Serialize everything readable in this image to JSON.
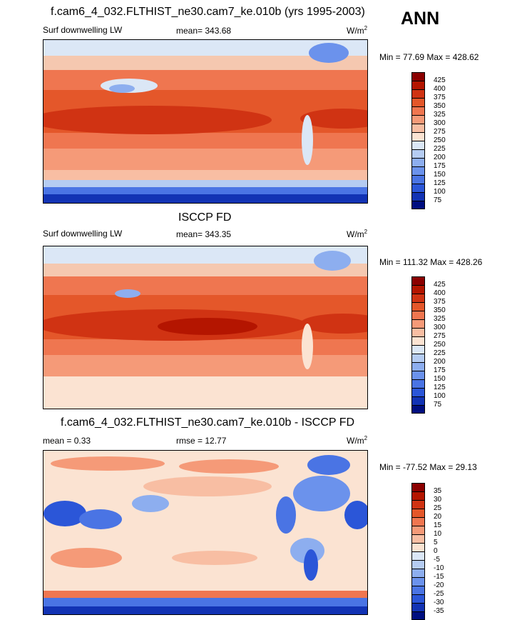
{
  "season": "ANN",
  "panels": [
    {
      "title": "f.cam6_4_032.FLTHIST_ne30.cam7_ke.010b (yrs 1995-2003)",
      "left_label": "Surf downwelling LW",
      "center_label": "mean= 343.68",
      "units": "W/m",
      "units_exp": "2",
      "minmax": "Min =  77.69 Max = 428.62"
    },
    {
      "title": "ISCCP FD",
      "left_label": "Surf downwelling LW",
      "center_label": "mean= 343.35",
      "units": "W/m",
      "units_exp": "2",
      "minmax": "Min = 111.32 Max = 428.26"
    },
    {
      "title": "f.cam6_4_032.FLTHIST_ne30.cam7_ke.010b - ISCCP FD",
      "left_label": "mean =   0.33",
      "center_label": "rmse =  12.77",
      "units": "W/m",
      "units_exp": "2",
      "minmax": "Min = -77.52 Max =  29.13"
    }
  ],
  "colorbar_abs": {
    "labels": [
      "425",
      "400",
      "375",
      "350",
      "325",
      "300",
      "275",
      "250",
      "225",
      "200",
      "175",
      "150",
      "125",
      "100",
      "75"
    ],
    "colors": [
      "#8b0000",
      "#b41500",
      "#d03313",
      "#e4572a",
      "#ef7650",
      "#f59a78",
      "#f8bea3",
      "#fbe3d2",
      "#dbe7f6",
      "#b5ccf2",
      "#8daeef",
      "#6b92ec",
      "#4a74e4",
      "#2b56d8",
      "#1233b4",
      "#000e80"
    ]
  },
  "colorbar_diff": {
    "labels": [
      "35",
      "30",
      "25",
      "20",
      "15",
      "10",
      "5",
      "0",
      "-5",
      "-10",
      "-15",
      "-20",
      "-25",
      "-30",
      "-35"
    ],
    "colors": [
      "#8b0000",
      "#b41500",
      "#d03313",
      "#e4572a",
      "#ef7650",
      "#f59a78",
      "#f8bea3",
      "#fbe3d2",
      "#dbe7f6",
      "#b5ccf2",
      "#8daeef",
      "#6b92ec",
      "#4a74e4",
      "#2b56d8",
      "#1233b4",
      "#000e80"
    ]
  }
}
